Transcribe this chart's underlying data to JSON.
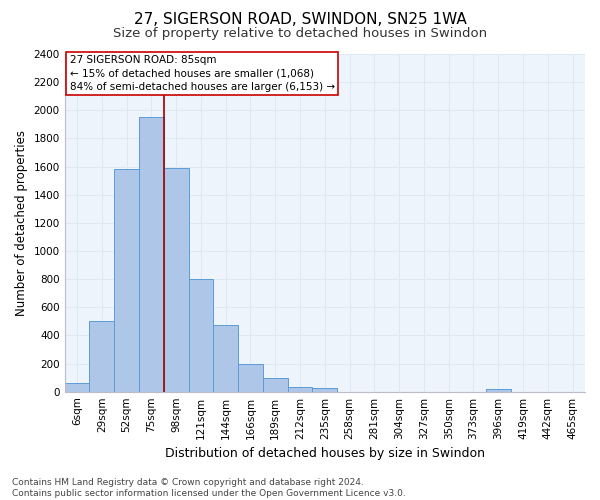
{
  "title1": "27, SIGERSON ROAD, SWINDON, SN25 1WA",
  "title2": "Size of property relative to detached houses in Swindon",
  "xlabel": "Distribution of detached houses by size in Swindon",
  "ylabel": "Number of detached properties",
  "categories": [
    "6sqm",
    "29sqm",
    "52sqm",
    "75sqm",
    "98sqm",
    "121sqm",
    "144sqm",
    "166sqm",
    "189sqm",
    "212sqm",
    "235sqm",
    "258sqm",
    "281sqm",
    "304sqm",
    "327sqm",
    "350sqm",
    "373sqm",
    "396sqm",
    "419sqm",
    "442sqm",
    "465sqm"
  ],
  "values": [
    60,
    500,
    1580,
    1950,
    1590,
    800,
    475,
    200,
    95,
    35,
    25,
    0,
    0,
    0,
    0,
    0,
    0,
    20,
    0,
    0,
    0
  ],
  "bar_color": "#aec6e8",
  "bar_edge_color": "#5b9bd5",
  "vline_x": 3.5,
  "vline_color": "#a00000",
  "annotation_text": "27 SIGERSON ROAD: 85sqm\n← 15% of detached houses are smaller (1,068)\n84% of semi-detached houses are larger (6,153) →",
  "annotation_box_color": "#cc0000",
  "ylim": [
    0,
    2400
  ],
  "yticks": [
    0,
    200,
    400,
    600,
    800,
    1000,
    1200,
    1400,
    1600,
    1800,
    2000,
    2200,
    2400
  ],
  "grid_color": "#dde8f0",
  "background_color": "#eef4fb",
  "footer1": "Contains HM Land Registry data © Crown copyright and database right 2024.",
  "footer2": "Contains public sector information licensed under the Open Government Licence v3.0.",
  "title1_fontsize": 11,
  "title2_fontsize": 9.5,
  "xlabel_fontsize": 9,
  "ylabel_fontsize": 8.5,
  "tick_fontsize": 7.5,
  "footer_fontsize": 6.5,
  "annot_fontsize": 7.5
}
